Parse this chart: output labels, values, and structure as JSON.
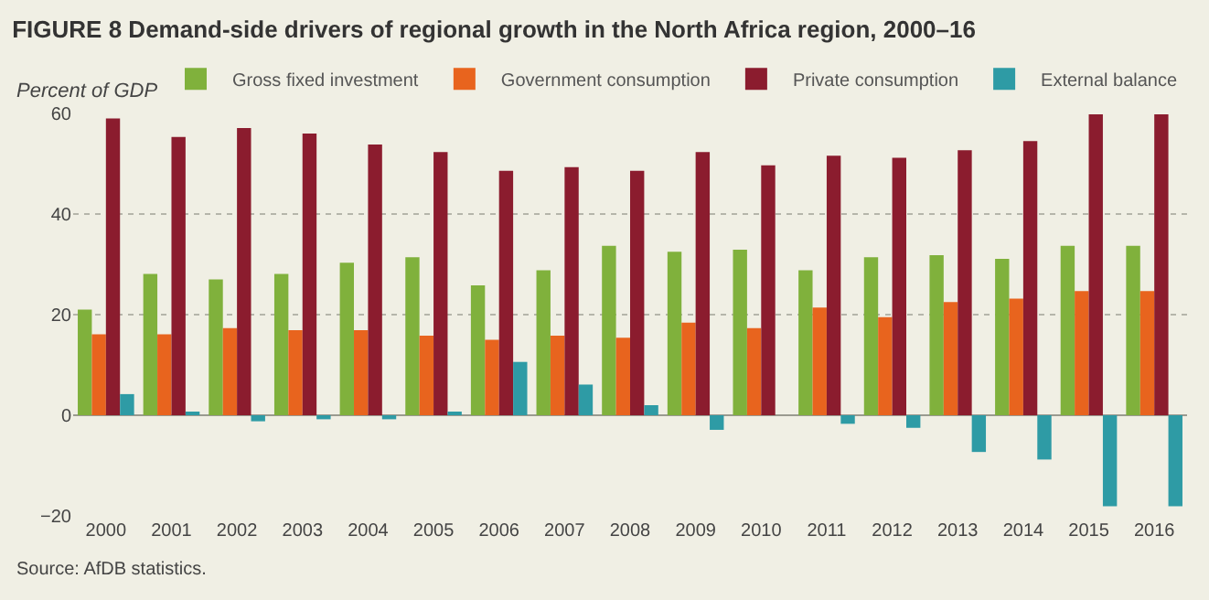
{
  "chart_data": {
    "type": "bar",
    "title": "FIGURE 8 Demand-side drivers of regional growth in the North Africa region, 2000–16",
    "ylabel": "Percent of GDP",
    "categories": [
      "2000",
      "2001",
      "2002",
      "2003",
      "2004",
      "2005",
      "2006",
      "2007",
      "2008",
      "2009",
      "2010",
      "2011",
      "2012",
      "2013",
      "2014",
      "2015",
      "2016"
    ],
    "series": [
      {
        "name": "Gross fixed investment",
        "color": "#80b13c",
        "values": [
          21.0,
          28.1,
          27.0,
          28.1,
          30.3,
          31.4,
          25.8,
          28.8,
          33.7,
          32.5,
          32.9,
          28.8,
          31.4,
          31.8,
          31.1,
          33.7,
          33.7
        ]
      },
      {
        "name": "Government consumption",
        "color": "#e8641e",
        "values": [
          16.1,
          16.1,
          17.3,
          16.9,
          16.9,
          15.8,
          15.0,
          15.8,
          15.4,
          18.4,
          17.3,
          21.4,
          19.5,
          22.5,
          23.2,
          24.7,
          24.7
        ]
      },
      {
        "name": "Private consumption",
        "color": "#8b1c2e",
        "values": [
          59.0,
          55.3,
          57.1,
          56.0,
          53.8,
          52.3,
          48.6,
          49.3,
          48.6,
          52.3,
          49.7,
          51.6,
          51.2,
          52.7,
          54.5,
          59.8,
          59.8
        ]
      },
      {
        "name": "External balance",
        "color": "#2e9ba5",
        "values": [
          4.2,
          0.5,
          -1.2,
          -0.8,
          -0.8,
          0.4,
          10.6,
          6.1,
          2.0,
          -2.9,
          0,
          -1.7,
          -2.5,
          -7.3,
          -8.8,
          -18.1,
          -18.1
        ]
      }
    ],
    "ylim": [
      -20,
      60
    ],
    "yticks": [
      -20,
      0,
      20,
      40,
      60
    ],
    "grid": "y",
    "legend": "top right",
    "annotations": [
      "Source: AfDB statistics."
    ]
  }
}
